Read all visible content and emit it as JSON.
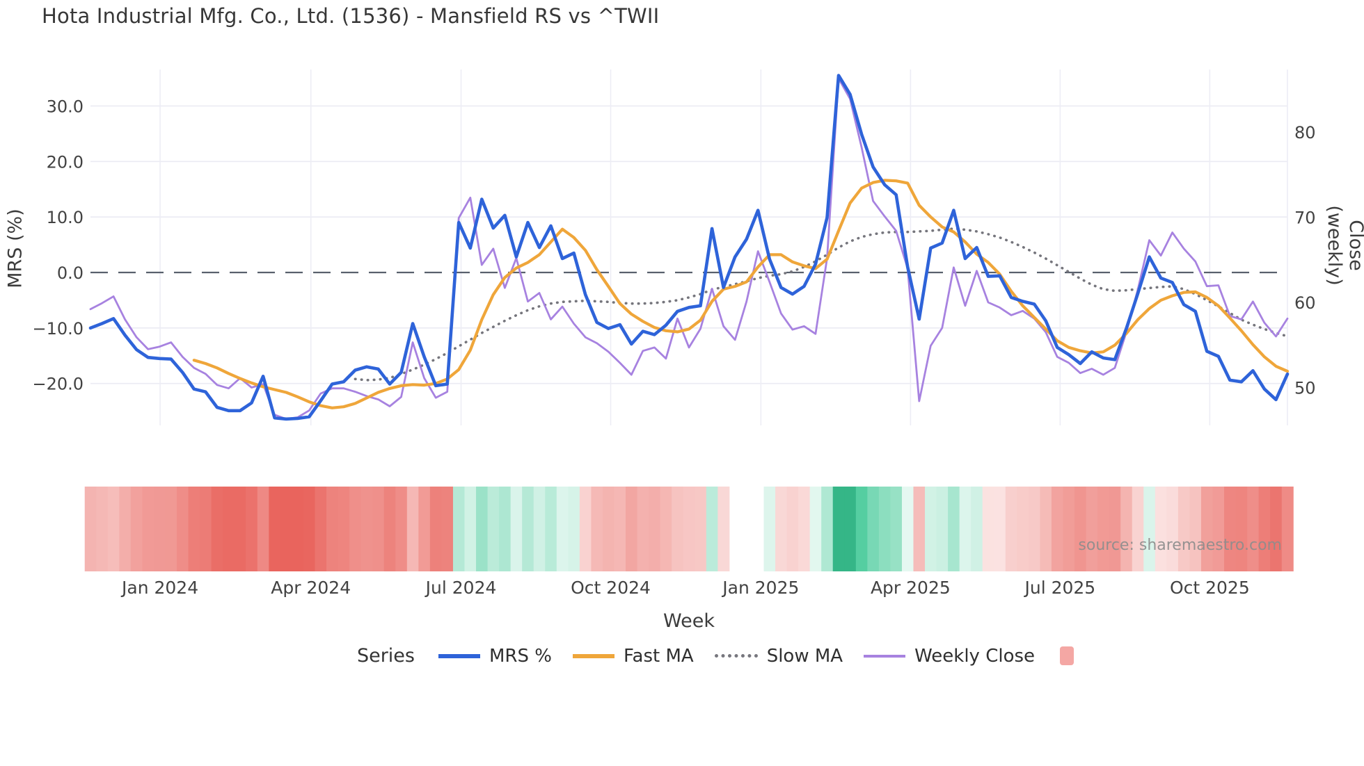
{
  "page": {
    "source_note": "source: sharemaestro.com"
  },
  "legend": {
    "series_title": "Series",
    "heatmap_swatch_color": "#f4a7a4"
  },
  "chart_data": {
    "type": "line",
    "title": "Hota Industrial Mfg. Co., Ltd. (1536) - Mansfield RS vs ^TWII",
    "xlabel": "Week",
    "ylabel_left": "MRS (%)",
    "ylabel_right": "Close (weekly)",
    "grid": true,
    "legend_position": "bottom",
    "x_weeks": 105,
    "x_tick_labels": [
      "Jan 2024",
      "Apr 2024",
      "Jul 2024",
      "Oct 2024",
      "Jan 2025",
      "Apr 2025",
      "Jul 2025",
      "Oct 2025"
    ],
    "x_tick_weeks": [
      6.05,
      19.15,
      32.2,
      45.2,
      58.25,
      71.25,
      84.25,
      97.25
    ],
    "y_left_tick_values": [
      30,
      20,
      10,
      0,
      -10,
      -20
    ],
    "y_left_tick_labels": [
      "30.0",
      "20.0",
      "10.0",
      "0.0",
      "−10.0",
      "−20.0"
    ],
    "y_left_range_hint": [
      -27.5,
      36.5
    ],
    "y_right_tick_values": [
      80,
      70,
      60,
      50
    ],
    "y_right_tick_labels": [
      "80",
      "70",
      "60",
      "50"
    ],
    "y_right_range_hint": [
      45.5,
      87.3
    ],
    "zero_line": {
      "value": 0,
      "style": "dashed",
      "color": "#59606d"
    },
    "series": [
      {
        "name": "MRS %",
        "axis": "left",
        "color": "#2e63d9",
        "width": 4.6,
        "style": "solid",
        "values": [
          -10.0,
          -9.2,
          -8.3,
          -11.3,
          -13.9,
          -15.3,
          -15.5,
          -15.6,
          -18.0,
          -21.0,
          -21.5,
          -24.3,
          -24.9,
          -24.9,
          -23.5,
          -18.7,
          -26.2,
          -26.4,
          -26.3,
          -26.0,
          -23.1,
          -20.1,
          -19.7,
          -17.6,
          -17.0,
          -17.4,
          -20.1,
          -18.0,
          -9.2,
          -15.2,
          -20.4,
          -20.1,
          9.0,
          4.4,
          13.2,
          8.0,
          10.3,
          2.8,
          9.0,
          4.5,
          8.4,
          2.5,
          3.5,
          -4.0,
          -9.0,
          -10.1,
          -9.4,
          -12.9,
          -10.6,
          -11.2,
          -9.5,
          -7.0,
          -6.3,
          -6.0,
          7.9,
          -2.7,
          2.8,
          6.0,
          11.2,
          2.4,
          -2.7,
          -3.9,
          -2.5,
          1.5,
          9.9,
          35.5,
          32.1,
          24.9,
          19.0,
          15.8,
          14.0,
          1.0,
          -8.4,
          4.4,
          5.3,
          11.2,
          2.5,
          4.5,
          -0.7,
          -0.6,
          -4.5,
          -5.2,
          -5.7,
          -8.7,
          -13.5,
          -14.8,
          -16.4,
          -14.3,
          -15.4,
          -15.7,
          -10.1,
          -3.8,
          2.8,
          -1.0,
          -1.8,
          -5.8,
          -7.0,
          -14.2,
          -15.1,
          -19.4,
          -19.7,
          -17.7,
          -21.0,
          -22.9,
          -18.3
        ]
      },
      {
        "name": "Fast MA",
        "axis": "left",
        "color": "#efa63a",
        "width": 4.2,
        "style": "solid",
        "values": [
          null,
          null,
          null,
          null,
          null,
          null,
          null,
          null,
          null,
          -15.8,
          -16.4,
          -17.2,
          -18.2,
          -19.1,
          -19.9,
          -20.6,
          -21.1,
          -21.6,
          -22.4,
          -23.3,
          -24.0,
          -24.4,
          -24.2,
          -23.6,
          -22.6,
          -21.6,
          -20.9,
          -20.4,
          -20.2,
          -20.3,
          -20.0,
          -19.2,
          -17.5,
          -14.0,
          -8.5,
          -4.0,
          -0.9,
          0.8,
          1.8,
          3.2,
          5.5,
          7.8,
          6.3,
          4.0,
          0.5,
          -2.5,
          -5.6,
          -7.5,
          -8.8,
          -9.9,
          -10.5,
          -10.7,
          -10.2,
          -8.6,
          -5.2,
          -3.0,
          -2.5,
          -1.7,
          1.0,
          3.2,
          3.2,
          1.9,
          1.2,
          0.7,
          2.4,
          7.5,
          12.5,
          15.2,
          16.2,
          16.6,
          16.5,
          16.1,
          12.1,
          10.0,
          8.2,
          7.3,
          5.5,
          3.3,
          1.8,
          -0.3,
          -3.4,
          -6.0,
          -8.1,
          -10.2,
          -12.3,
          -13.5,
          -14.1,
          -14.5,
          -14.3,
          -13.1,
          -11.0,
          -8.5,
          -6.5,
          -5.0,
          -4.2,
          -3.6,
          -3.5,
          -4.5,
          -6.0,
          -8.2,
          -10.5,
          -13.0,
          -15.2,
          -16.9,
          -17.8
        ]
      },
      {
        "name": "Slow MA",
        "axis": "left",
        "color": "#75757c",
        "width": 3.6,
        "style": "dotted",
        "values": [
          null,
          null,
          null,
          null,
          null,
          null,
          null,
          null,
          null,
          null,
          null,
          null,
          null,
          null,
          null,
          null,
          null,
          null,
          null,
          null,
          null,
          null,
          null,
          -19.2,
          -19.4,
          -19.3,
          -19.0,
          -18.3,
          -17.5,
          -16.6,
          -15.6,
          -14.5,
          -13.3,
          -12.1,
          -10.9,
          -9.8,
          -8.7,
          -7.7,
          -6.8,
          -6.1,
          -5.6,
          -5.3,
          -5.2,
          -5.1,
          -5.2,
          -5.3,
          -5.5,
          -5.6,
          -5.6,
          -5.5,
          -5.3,
          -5.0,
          -4.5,
          -3.9,
          -3.1,
          -2.6,
          -2.1,
          -1.6,
          -1.0,
          -0.6,
          -0.3,
          0.2,
          1.0,
          2.0,
          3.2,
          4.5,
          5.6,
          6.4,
          6.9,
          7.2,
          7.3,
          7.3,
          7.4,
          7.5,
          7.7,
          7.9,
          7.7,
          7.4,
          6.9,
          6.3,
          5.5,
          4.6,
          3.6,
          2.5,
          1.3,
          0.1,
          -1.1,
          -2.2,
          -3.0,
          -3.3,
          -3.2,
          -3.0,
          -2.8,
          -2.6,
          -2.5,
          -3.0,
          -3.9,
          -5.0,
          -6.1,
          -7.3,
          -8.5,
          -9.4,
          -10.2,
          -10.9,
          -11.5
        ]
      },
      {
        "name": "Weekly Close",
        "axis": "right",
        "color": "#a782e0",
        "width": 2.8,
        "style": "solid",
        "values": [
          59.2,
          59.9,
          60.7,
          58.0,
          55.9,
          54.5,
          54.8,
          55.3,
          53.6,
          52.3,
          51.6,
          50.3,
          49.9,
          51.1,
          50.0,
          50.4,
          46.8,
          46.3,
          46.5,
          47.3,
          49.3,
          49.9,
          49.9,
          49.5,
          49.0,
          48.6,
          47.8,
          48.9,
          55.3,
          51.1,
          48.8,
          49.5,
          69.9,
          72.3,
          64.4,
          66.3,
          61.7,
          65.2,
          60.1,
          61.1,
          58.0,
          59.5,
          57.5,
          55.9,
          55.2,
          54.2,
          52.9,
          51.5,
          54.3,
          54.7,
          53.4,
          58.1,
          54.7,
          56.9,
          61.6,
          57.2,
          55.6,
          60.1,
          66.0,
          62.4,
          58.7,
          56.8,
          57.2,
          56.3,
          65.2,
          86.3,
          83.9,
          78.2,
          71.9,
          70.1,
          68.4,
          64.0,
          48.4,
          54.9,
          57.0,
          64.1,
          59.6,
          63.7,
          60.0,
          59.4,
          58.5,
          59.0,
          58.1,
          56.5,
          53.6,
          52.9,
          51.7,
          52.2,
          51.5,
          52.3,
          56.5,
          61.5,
          67.3,
          65.5,
          68.2,
          66.3,
          64.8,
          61.9,
          62.0,
          58.4,
          58.0,
          60.1,
          57.6,
          56.0,
          58.1
        ]
      }
    ],
    "heatmap_strip": {
      "description": "weekly MRS% heat strip, red=negative green=positive, white=missing",
      "values": [
        -10.0,
        -9.2,
        -8.3,
        -11.3,
        -13.9,
        -15.3,
        -15.5,
        -15.6,
        -18.0,
        -21.0,
        -21.5,
        -24.3,
        -24.9,
        -24.9,
        -23.5,
        -18.7,
        -26.2,
        -26.4,
        -26.3,
        -26.0,
        -23.1,
        -20.1,
        -19.7,
        -17.6,
        -17.0,
        -17.4,
        -20.1,
        -18.0,
        -9.2,
        -15.2,
        -20.4,
        -20.1,
        9.0,
        4.4,
        13.2,
        8.0,
        10.3,
        2.8,
        9.0,
        4.5,
        8.4,
        2.5,
        3.5,
        -4.0,
        -9.0,
        -10.1,
        -9.4,
        -12.9,
        -10.6,
        -11.2,
        -9.5,
        -7.0,
        -6.3,
        -6.0,
        7.9,
        -2.7,
        null,
        null,
        null,
        2.4,
        -2.7,
        -3.9,
        -2.5,
        1.5,
        9.9,
        35.5,
        32.1,
        24.9,
        19.0,
        15.8,
        14.0,
        1.0,
        -8.4,
        4.4,
        5.3,
        11.2,
        2.5,
        4.5,
        -0.7,
        -0.6,
        -4.5,
        -5.2,
        -5.7,
        -8.7,
        -13.5,
        -14.8,
        -16.4,
        -14.3,
        -15.4,
        -15.7,
        -10.1,
        -3.8,
        2.8,
        -1.0,
        -1.8,
        -5.8,
        -7.0,
        -14.2,
        -15.1,
        -19.4,
        -19.7,
        -17.7,
        -21.0,
        -22.9,
        -18.3
      ]
    }
  }
}
